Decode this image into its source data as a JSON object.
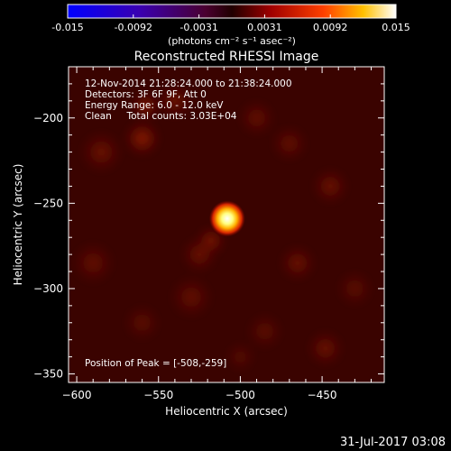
{
  "chart_data": {
    "type": "heatmap",
    "title": "Reconstructed RHESSI Image",
    "colorbar": {
      "ticks": [
        "-0.015",
        "-0.0092",
        "-0.0031",
        "0.0031",
        "0.0092",
        "0.015"
      ],
      "range": [
        -0.015,
        0.015
      ],
      "unit_label": "(photons cm⁻² s⁻¹ asec⁻²)",
      "colormap": "blue-purple-red-yellow-white"
    },
    "xlabel": "Heliocentric X (arcsec)",
    "ylabel": "Heliocentric Y (arcsec)",
    "xlim": [
      -605,
      -412
    ],
    "ylim": [
      -355,
      -170
    ],
    "x_ticks": [
      "−600",
      "−550",
      "−500",
      "−450"
    ],
    "x_tick_values": [
      -600,
      -550,
      -500,
      -450
    ],
    "y_ticks": [
      "−200",
      "−250",
      "−300",
      "−350"
    ],
    "y_tick_values": [
      -200,
      -250,
      -300,
      -350
    ],
    "annotations": [
      "12-Nov-2014 21:28:24.000 to 21:38:24.000",
      "Detectors: 3F 6F 9F, Att 0",
      "Energy Range: 6.0 - 12.0 keV",
      "Clean     Total counts: 3.03E+04"
    ],
    "peak_label": "Position of Peak = [-508,-259]",
    "peak": {
      "x": -508,
      "y": -259
    },
    "footer_date": "31-Jul-2017 03:08",
    "blobs": [
      {
        "x": -508,
        "y": -259,
        "r": 8,
        "intensity": 1.0
      },
      {
        "x": -518,
        "y": -272,
        "r": 10,
        "intensity": 0.45
      },
      {
        "x": -525,
        "y": -280,
        "r": 12,
        "intensity": 0.35
      },
      {
        "x": -560,
        "y": -212,
        "r": 12,
        "intensity": 0.55
      },
      {
        "x": -558,
        "y": -193,
        "r": 10,
        "intensity": 0.45
      },
      {
        "x": -585,
        "y": -220,
        "r": 14,
        "intensity": 0.35
      },
      {
        "x": -540,
        "y": -190,
        "r": 12,
        "intensity": 0.35
      },
      {
        "x": -490,
        "y": -200,
        "r": 12,
        "intensity": 0.3
      },
      {
        "x": -470,
        "y": -215,
        "r": 12,
        "intensity": 0.3
      },
      {
        "x": -445,
        "y": -240,
        "r": 12,
        "intensity": 0.35
      },
      {
        "x": -465,
        "y": -285,
        "r": 12,
        "intensity": 0.35
      },
      {
        "x": -530,
        "y": -305,
        "r": 14,
        "intensity": 0.3
      },
      {
        "x": -560,
        "y": -320,
        "r": 12,
        "intensity": 0.25
      },
      {
        "x": -448,
        "y": -335,
        "r": 12,
        "intensity": 0.35
      },
      {
        "x": -485,
        "y": -325,
        "r": 12,
        "intensity": 0.25
      },
      {
        "x": -590,
        "y": -285,
        "r": 14,
        "intensity": 0.3
      },
      {
        "x": -430,
        "y": -300,
        "r": 12,
        "intensity": 0.25
      },
      {
        "x": -500,
        "y": -340,
        "r": 10,
        "intensity": 0.2
      }
    ]
  }
}
